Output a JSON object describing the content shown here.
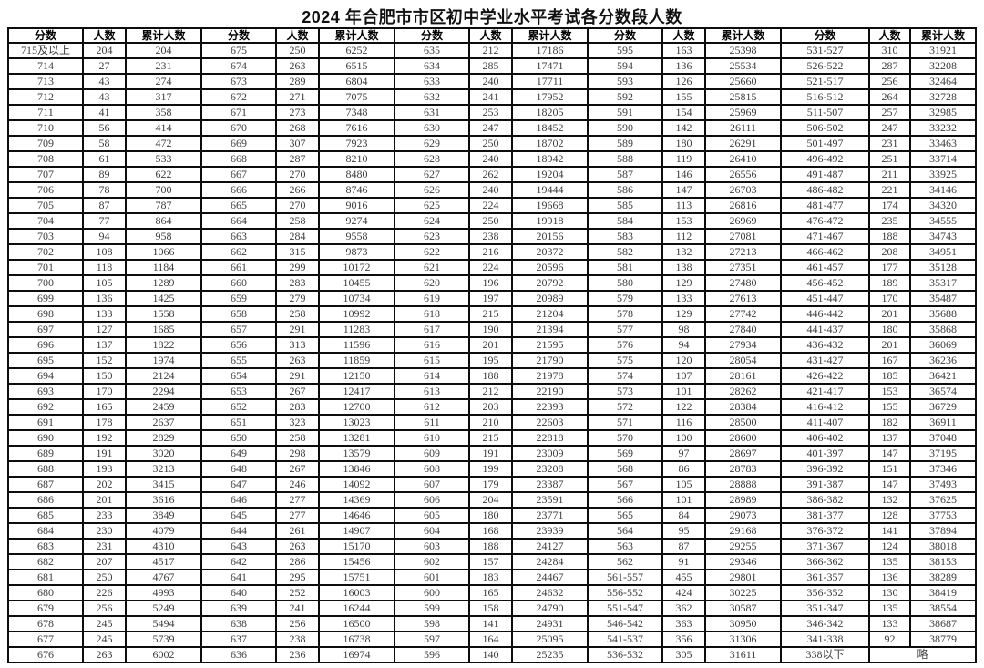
{
  "title": "2024 年合肥市市区初中学业水平考试各分数段人数",
  "table": {
    "headers": [
      "分数",
      "人数",
      "累计人数"
    ],
    "groups": [
      {
        "rows": [
          [
            "715及以上",
            "204",
            "204"
          ],
          [
            "714",
            "27",
            "231"
          ],
          [
            "713",
            "43",
            "274"
          ],
          [
            "712",
            "43",
            "317"
          ],
          [
            "711",
            "41",
            "358"
          ],
          [
            "710",
            "56",
            "414"
          ],
          [
            "709",
            "58",
            "472"
          ],
          [
            "708",
            "61",
            "533"
          ],
          [
            "707",
            "89",
            "622"
          ],
          [
            "706",
            "78",
            "700"
          ],
          [
            "705",
            "87",
            "787"
          ],
          [
            "704",
            "77",
            "864"
          ],
          [
            "703",
            "94",
            "958"
          ],
          [
            "702",
            "108",
            "1066"
          ],
          [
            "701",
            "118",
            "1184"
          ],
          [
            "700",
            "105",
            "1289"
          ],
          [
            "699",
            "136",
            "1425"
          ],
          [
            "698",
            "133",
            "1558"
          ],
          [
            "697",
            "127",
            "1685"
          ],
          [
            "696",
            "137",
            "1822"
          ],
          [
            "695",
            "152",
            "1974"
          ],
          [
            "694",
            "150",
            "2124"
          ],
          [
            "693",
            "170",
            "2294"
          ],
          [
            "692",
            "165",
            "2459"
          ],
          [
            "691",
            "178",
            "2637"
          ],
          [
            "690",
            "192",
            "2829"
          ],
          [
            "689",
            "191",
            "3020"
          ],
          [
            "688",
            "193",
            "3213"
          ],
          [
            "687",
            "202",
            "3415"
          ],
          [
            "686",
            "201",
            "3616"
          ],
          [
            "685",
            "233",
            "3849"
          ],
          [
            "684",
            "230",
            "4079"
          ],
          [
            "683",
            "231",
            "4310"
          ],
          [
            "682",
            "207",
            "4517"
          ],
          [
            "681",
            "250",
            "4767"
          ],
          [
            "680",
            "226",
            "4993"
          ],
          [
            "679",
            "256",
            "5249"
          ],
          [
            "678",
            "245",
            "5494"
          ],
          [
            "677",
            "245",
            "5739"
          ],
          [
            "676",
            "263",
            "6002"
          ]
        ]
      },
      {
        "rows": [
          [
            "675",
            "250",
            "6252"
          ],
          [
            "674",
            "263",
            "6515"
          ],
          [
            "673",
            "289",
            "6804"
          ],
          [
            "672",
            "271",
            "7075"
          ],
          [
            "671",
            "273",
            "7348"
          ],
          [
            "670",
            "268",
            "7616"
          ],
          [
            "669",
            "307",
            "7923"
          ],
          [
            "668",
            "287",
            "8210"
          ],
          [
            "667",
            "270",
            "8480"
          ],
          [
            "666",
            "266",
            "8746"
          ],
          [
            "665",
            "270",
            "9016"
          ],
          [
            "664",
            "258",
            "9274"
          ],
          [
            "663",
            "284",
            "9558"
          ],
          [
            "662",
            "315",
            "9873"
          ],
          [
            "661",
            "299",
            "10172"
          ],
          [
            "660",
            "283",
            "10455"
          ],
          [
            "659",
            "279",
            "10734"
          ],
          [
            "658",
            "258",
            "10992"
          ],
          [
            "657",
            "291",
            "11283"
          ],
          [
            "656",
            "313",
            "11596"
          ],
          [
            "655",
            "263",
            "11859"
          ],
          [
            "654",
            "291",
            "12150"
          ],
          [
            "653",
            "267",
            "12417"
          ],
          [
            "652",
            "283",
            "12700"
          ],
          [
            "651",
            "323",
            "13023"
          ],
          [
            "650",
            "258",
            "13281"
          ],
          [
            "649",
            "298",
            "13579"
          ],
          [
            "648",
            "267",
            "13846"
          ],
          [
            "647",
            "246",
            "14092"
          ],
          [
            "646",
            "277",
            "14369"
          ],
          [
            "645",
            "277",
            "14646"
          ],
          [
            "644",
            "261",
            "14907"
          ],
          [
            "643",
            "263",
            "15170"
          ],
          [
            "642",
            "286",
            "15456"
          ],
          [
            "641",
            "295",
            "15751"
          ],
          [
            "640",
            "252",
            "16003"
          ],
          [
            "639",
            "241",
            "16244"
          ],
          [
            "638",
            "256",
            "16500"
          ],
          [
            "637",
            "238",
            "16738"
          ],
          [
            "636",
            "236",
            "16974"
          ]
        ]
      },
      {
        "rows": [
          [
            "635",
            "212",
            "17186"
          ],
          [
            "634",
            "285",
            "17471"
          ],
          [
            "633",
            "240",
            "17711"
          ],
          [
            "632",
            "241",
            "17952"
          ],
          [
            "631",
            "253",
            "18205"
          ],
          [
            "630",
            "247",
            "18452"
          ],
          [
            "629",
            "250",
            "18702"
          ],
          [
            "628",
            "240",
            "18942"
          ],
          [
            "627",
            "262",
            "19204"
          ],
          [
            "626",
            "240",
            "19444"
          ],
          [
            "625",
            "224",
            "19668"
          ],
          [
            "624",
            "250",
            "19918"
          ],
          [
            "623",
            "238",
            "20156"
          ],
          [
            "622",
            "216",
            "20372"
          ],
          [
            "621",
            "224",
            "20596"
          ],
          [
            "620",
            "196",
            "20792"
          ],
          [
            "619",
            "197",
            "20989"
          ],
          [
            "618",
            "215",
            "21204"
          ],
          [
            "617",
            "190",
            "21394"
          ],
          [
            "616",
            "201",
            "21595"
          ],
          [
            "615",
            "195",
            "21790"
          ],
          [
            "614",
            "188",
            "21978"
          ],
          [
            "613",
            "212",
            "22190"
          ],
          [
            "612",
            "203",
            "22393"
          ],
          [
            "611",
            "210",
            "22603"
          ],
          [
            "610",
            "215",
            "22818"
          ],
          [
            "609",
            "191",
            "23009"
          ],
          [
            "608",
            "199",
            "23208"
          ],
          [
            "607",
            "179",
            "23387"
          ],
          [
            "606",
            "204",
            "23591"
          ],
          [
            "605",
            "180",
            "23771"
          ],
          [
            "604",
            "168",
            "23939"
          ],
          [
            "603",
            "188",
            "24127"
          ],
          [
            "602",
            "157",
            "24284"
          ],
          [
            "601",
            "183",
            "24467"
          ],
          [
            "600",
            "165",
            "24632"
          ],
          [
            "599",
            "158",
            "24790"
          ],
          [
            "598",
            "141",
            "24931"
          ],
          [
            "597",
            "164",
            "25095"
          ],
          [
            "596",
            "140",
            "25235"
          ]
        ]
      },
      {
        "rows": [
          [
            "595",
            "163",
            "25398"
          ],
          [
            "594",
            "136",
            "25534"
          ],
          [
            "593",
            "126",
            "25660"
          ],
          [
            "592",
            "155",
            "25815"
          ],
          [
            "591",
            "154",
            "25969"
          ],
          [
            "590",
            "142",
            "26111"
          ],
          [
            "589",
            "180",
            "26291"
          ],
          [
            "588",
            "119",
            "26410"
          ],
          [
            "587",
            "146",
            "26556"
          ],
          [
            "586",
            "147",
            "26703"
          ],
          [
            "585",
            "113",
            "26816"
          ],
          [
            "584",
            "153",
            "26969"
          ],
          [
            "583",
            "112",
            "27081"
          ],
          [
            "582",
            "132",
            "27213"
          ],
          [
            "581",
            "138",
            "27351"
          ],
          [
            "580",
            "129",
            "27480"
          ],
          [
            "579",
            "133",
            "27613"
          ],
          [
            "578",
            "129",
            "27742"
          ],
          [
            "577",
            "98",
            "27840"
          ],
          [
            "576",
            "94",
            "27934"
          ],
          [
            "575",
            "120",
            "28054"
          ],
          [
            "574",
            "107",
            "28161"
          ],
          [
            "573",
            "101",
            "28262"
          ],
          [
            "572",
            "122",
            "28384"
          ],
          [
            "571",
            "116",
            "28500"
          ],
          [
            "570",
            "100",
            "28600"
          ],
          [
            "569",
            "97",
            "28697"
          ],
          [
            "568",
            "86",
            "28783"
          ],
          [
            "567",
            "105",
            "28888"
          ],
          [
            "566",
            "101",
            "28989"
          ],
          [
            "565",
            "84",
            "29073"
          ],
          [
            "564",
            "95",
            "29168"
          ],
          [
            "563",
            "87",
            "29255"
          ],
          [
            "562",
            "91",
            "29346"
          ],
          [
            "561-557",
            "455",
            "29801"
          ],
          [
            "556-552",
            "424",
            "30225"
          ],
          [
            "551-547",
            "362",
            "30587"
          ],
          [
            "546-542",
            "363",
            "30950"
          ],
          [
            "541-537",
            "356",
            "31306"
          ],
          [
            "536-532",
            "305",
            "31611"
          ]
        ]
      },
      {
        "rows": [
          [
            "531-527",
            "310",
            "31921"
          ],
          [
            "526-522",
            "287",
            "32208"
          ],
          [
            "521-517",
            "256",
            "32464"
          ],
          [
            "516-512",
            "264",
            "32728"
          ],
          [
            "511-507",
            "257",
            "32985"
          ],
          [
            "506-502",
            "247",
            "33232"
          ],
          [
            "501-497",
            "231",
            "33463"
          ],
          [
            "496-492",
            "251",
            "33714"
          ],
          [
            "491-487",
            "211",
            "33925"
          ],
          [
            "486-482",
            "221",
            "34146"
          ],
          [
            "481-477",
            "174",
            "34320"
          ],
          [
            "476-472",
            "235",
            "34555"
          ],
          [
            "471-467",
            "188",
            "34743"
          ],
          [
            "466-462",
            "208",
            "34951"
          ],
          [
            "461-457",
            "177",
            "35128"
          ],
          [
            "456-452",
            "189",
            "35317"
          ],
          [
            "451-447",
            "170",
            "35487"
          ],
          [
            "446-442",
            "201",
            "35688"
          ],
          [
            "441-437",
            "180",
            "35868"
          ],
          [
            "436-432",
            "201",
            "36069"
          ],
          [
            "431-427",
            "167",
            "36236"
          ],
          [
            "426-422",
            "185",
            "36421"
          ],
          [
            "421-417",
            "153",
            "36574"
          ],
          [
            "416-412",
            "155",
            "36729"
          ],
          [
            "411-407",
            "182",
            "36911"
          ],
          [
            "406-402",
            "137",
            "37048"
          ],
          [
            "401-397",
            "147",
            "37195"
          ],
          [
            "396-392",
            "151",
            "37346"
          ],
          [
            "391-387",
            "147",
            "37493"
          ],
          [
            "386-382",
            "132",
            "37625"
          ],
          [
            "381-377",
            "128",
            "37753"
          ],
          [
            "376-372",
            "141",
            "37894"
          ],
          [
            "371-367",
            "124",
            "38018"
          ],
          [
            "366-362",
            "135",
            "38153"
          ],
          [
            "361-357",
            "136",
            "38289"
          ],
          [
            "356-352",
            "130",
            "38419"
          ],
          [
            "351-347",
            "135",
            "38554"
          ],
          [
            "346-342",
            "133",
            "38687"
          ],
          [
            "341-338",
            "92",
            "38779"
          ],
          [
            "338以下",
            "略"
          ]
        ]
      }
    ]
  }
}
